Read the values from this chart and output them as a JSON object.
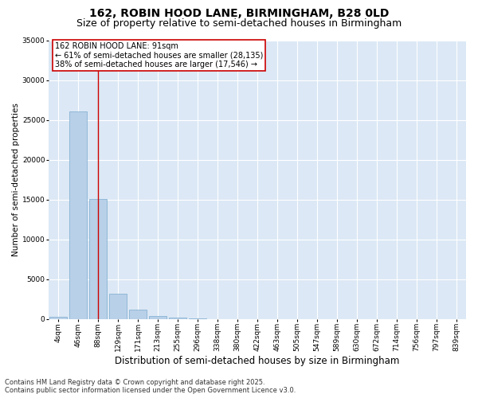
{
  "title": "162, ROBIN HOOD LANE, BIRMINGHAM, B28 0LD",
  "subtitle": "Size of property relative to semi-detached houses in Birmingham",
  "xlabel": "Distribution of semi-detached houses by size in Birmingham",
  "ylabel": "Number of semi-detached properties",
  "categories": [
    "4sqm",
    "46sqm",
    "88sqm",
    "129sqm",
    "171sqm",
    "213sqm",
    "255sqm",
    "296sqm",
    "338sqm",
    "380sqm",
    "422sqm",
    "463sqm",
    "505sqm",
    "547sqm",
    "589sqm",
    "630sqm",
    "672sqm",
    "714sqm",
    "756sqm",
    "797sqm",
    "839sqm"
  ],
  "values": [
    300,
    26100,
    15100,
    3200,
    1200,
    400,
    200,
    50,
    0,
    0,
    0,
    0,
    0,
    0,
    0,
    0,
    0,
    0,
    0,
    0,
    0
  ],
  "bar_color": "#b8d0e8",
  "bar_edge_color": "#7aabcf",
  "figure_bg": "#ffffff",
  "axes_bg": "#dce8f5",
  "grid_color": "#ffffff",
  "vline_x": 2,
  "vline_color": "#cc0000",
  "ylim": [
    0,
    35000
  ],
  "yticks": [
    0,
    5000,
    10000,
    15000,
    20000,
    25000,
    30000,
    35000
  ],
  "annotation_text": "162 ROBIN HOOD LANE: 91sqm\n← 61% of semi-detached houses are smaller (28,135)\n38% of semi-detached houses are larger (17,546) →",
  "annotation_box_facecolor": "#ffffff",
  "annotation_box_edgecolor": "#cc0000",
  "footer_text": "Contains HM Land Registry data © Crown copyright and database right 2025.\nContains public sector information licensed under the Open Government Licence v3.0.",
  "title_fontsize": 10,
  "subtitle_fontsize": 9,
  "xlabel_fontsize": 8.5,
  "ylabel_fontsize": 7.5,
  "tick_fontsize": 6.5,
  "annotation_fontsize": 7,
  "footer_fontsize": 6
}
